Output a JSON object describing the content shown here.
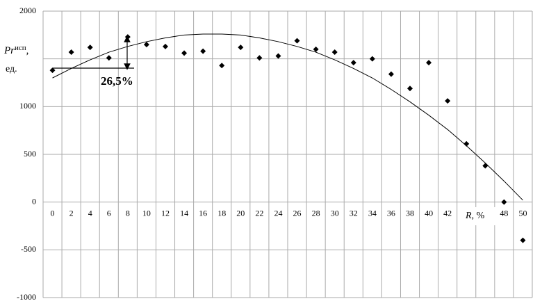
{
  "chart_data": {
    "type": "scatter",
    "x": [
      0,
      2,
      4,
      6,
      8,
      10,
      12,
      14,
      16,
      18,
      20,
      22,
      24,
      26,
      28,
      30,
      32,
      34,
      36,
      38,
      40,
      42,
      44,
      46,
      48,
      50
    ],
    "series": [
      {
        "color": "#000000",
        "values": [
          1380,
          1570,
          1620,
          1510,
          1730,
          1650,
          1630,
          1560,
          1580,
          1430,
          1620,
          1510,
          1530,
          1690,
          1600,
          1570,
          1460,
          1500,
          1340,
          1190,
          1460,
          1060,
          610,
          380,
          0,
          -400
        ]
      },
      {
        "color": "#000000",
        "line": true,
        "values": [
          1300,
          1400,
          1490,
          1570,
          1630,
          1680,
          1720,
          1750,
          1760,
          1760,
          1750,
          1720,
          1680,
          1630,
          1570,
          1490,
          1400,
          1300,
          1180,
          1050,
          910,
          760,
          590,
          410,
          220,
          20
        ]
      }
    ],
    "xlim": [
      -1,
      51
    ],
    "xticks": [
      0,
      2,
      4,
      6,
      8,
      10,
      12,
      14,
      16,
      18,
      20,
      22,
      24,
      26,
      28,
      30,
      32,
      34,
      36,
      38,
      40,
      42,
      48,
      50
    ],
    "ylim": [
      -1000,
      2000
    ],
    "yticks": [
      -1000,
      -500,
      0,
      500,
      1000,
      1500,
      2000
    ],
    "grid": true,
    "ylabel_symbol": "Pr",
    "ylabel_superscript": "исп",
    "ylabel_comma": ",",
    "ylabel_unit": "ед.",
    "xlabel_symbol": "R",
    "xlabel_unit": ", %",
    "annotation": "26,5%"
  }
}
